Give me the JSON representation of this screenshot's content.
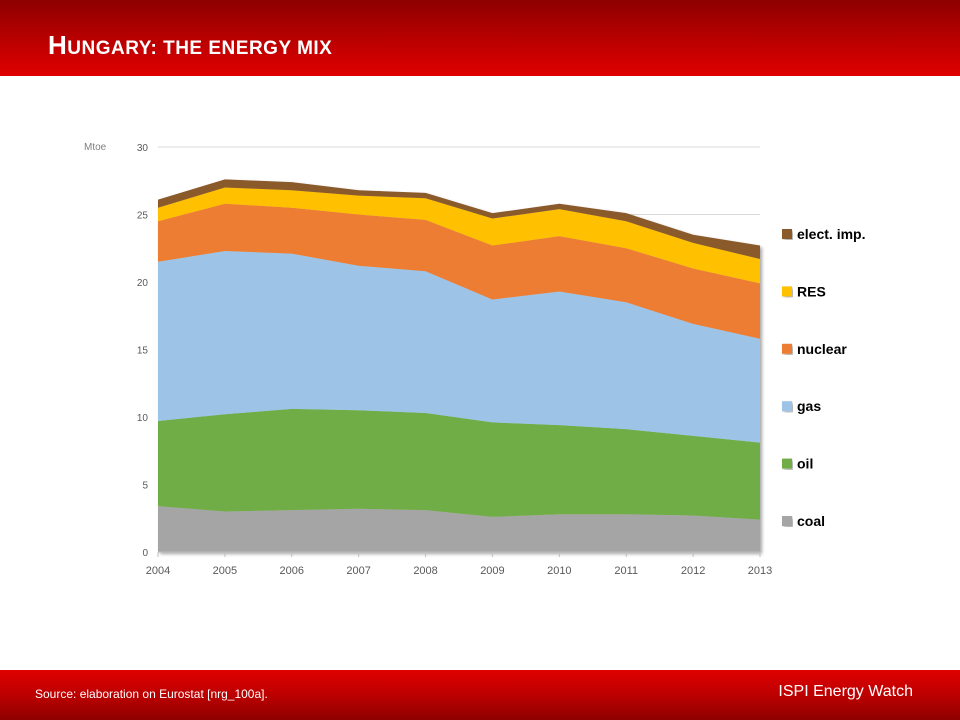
{
  "header": {
    "title_first": "H",
    "title_rest": "ungary: the energy mix"
  },
  "footer": {
    "source": "Source: elaboration on Eurostat [nrg_100a].",
    "brand": "ISPI Energy Watch"
  },
  "chart_data": {
    "type": "area",
    "stacked": true,
    "title": "",
    "xlabel": "",
    "ylabel": "Mtoe",
    "categories": [
      "2004",
      "2005",
      "2006",
      "2007",
      "2008",
      "2009",
      "2010",
      "2011",
      "2012",
      "2013"
    ],
    "ylim": [
      0,
      30
    ],
    "yticks": [
      0,
      5,
      10,
      15,
      20,
      25,
      30
    ],
    "grid": true,
    "legend_position": "right",
    "series": [
      {
        "name": "coal",
        "color": "#a5a5a5",
        "values": [
          3.4,
          3.0,
          3.1,
          3.2,
          3.1,
          2.6,
          2.8,
          2.8,
          2.7,
          2.4
        ]
      },
      {
        "name": "oil",
        "color": "#70ad47",
        "values": [
          6.3,
          7.2,
          7.5,
          7.3,
          7.2,
          7.0,
          6.6,
          6.3,
          5.9,
          5.7
        ]
      },
      {
        "name": "gas",
        "color": "#9dc3e6",
        "values": [
          11.8,
          12.1,
          11.5,
          10.7,
          10.5,
          9.1,
          9.9,
          9.4,
          8.3,
          7.7
        ]
      },
      {
        "name": "nuclear",
        "color": "#ed7d31",
        "values": [
          3.0,
          3.5,
          3.4,
          3.8,
          3.8,
          4.0,
          4.1,
          4.0,
          4.1,
          4.1
        ]
      },
      {
        "name": "RES",
        "color": "#ffc000",
        "values": [
          1.0,
          1.2,
          1.3,
          1.4,
          1.6,
          2.0,
          2.0,
          2.0,
          1.9,
          1.8
        ]
      },
      {
        "name": "elect. imp.",
        "color": "#8b5a2b",
        "values": [
          0.6,
          0.6,
          0.6,
          0.4,
          0.4,
          0.4,
          0.4,
          0.6,
          0.6,
          1.0
        ]
      }
    ]
  }
}
